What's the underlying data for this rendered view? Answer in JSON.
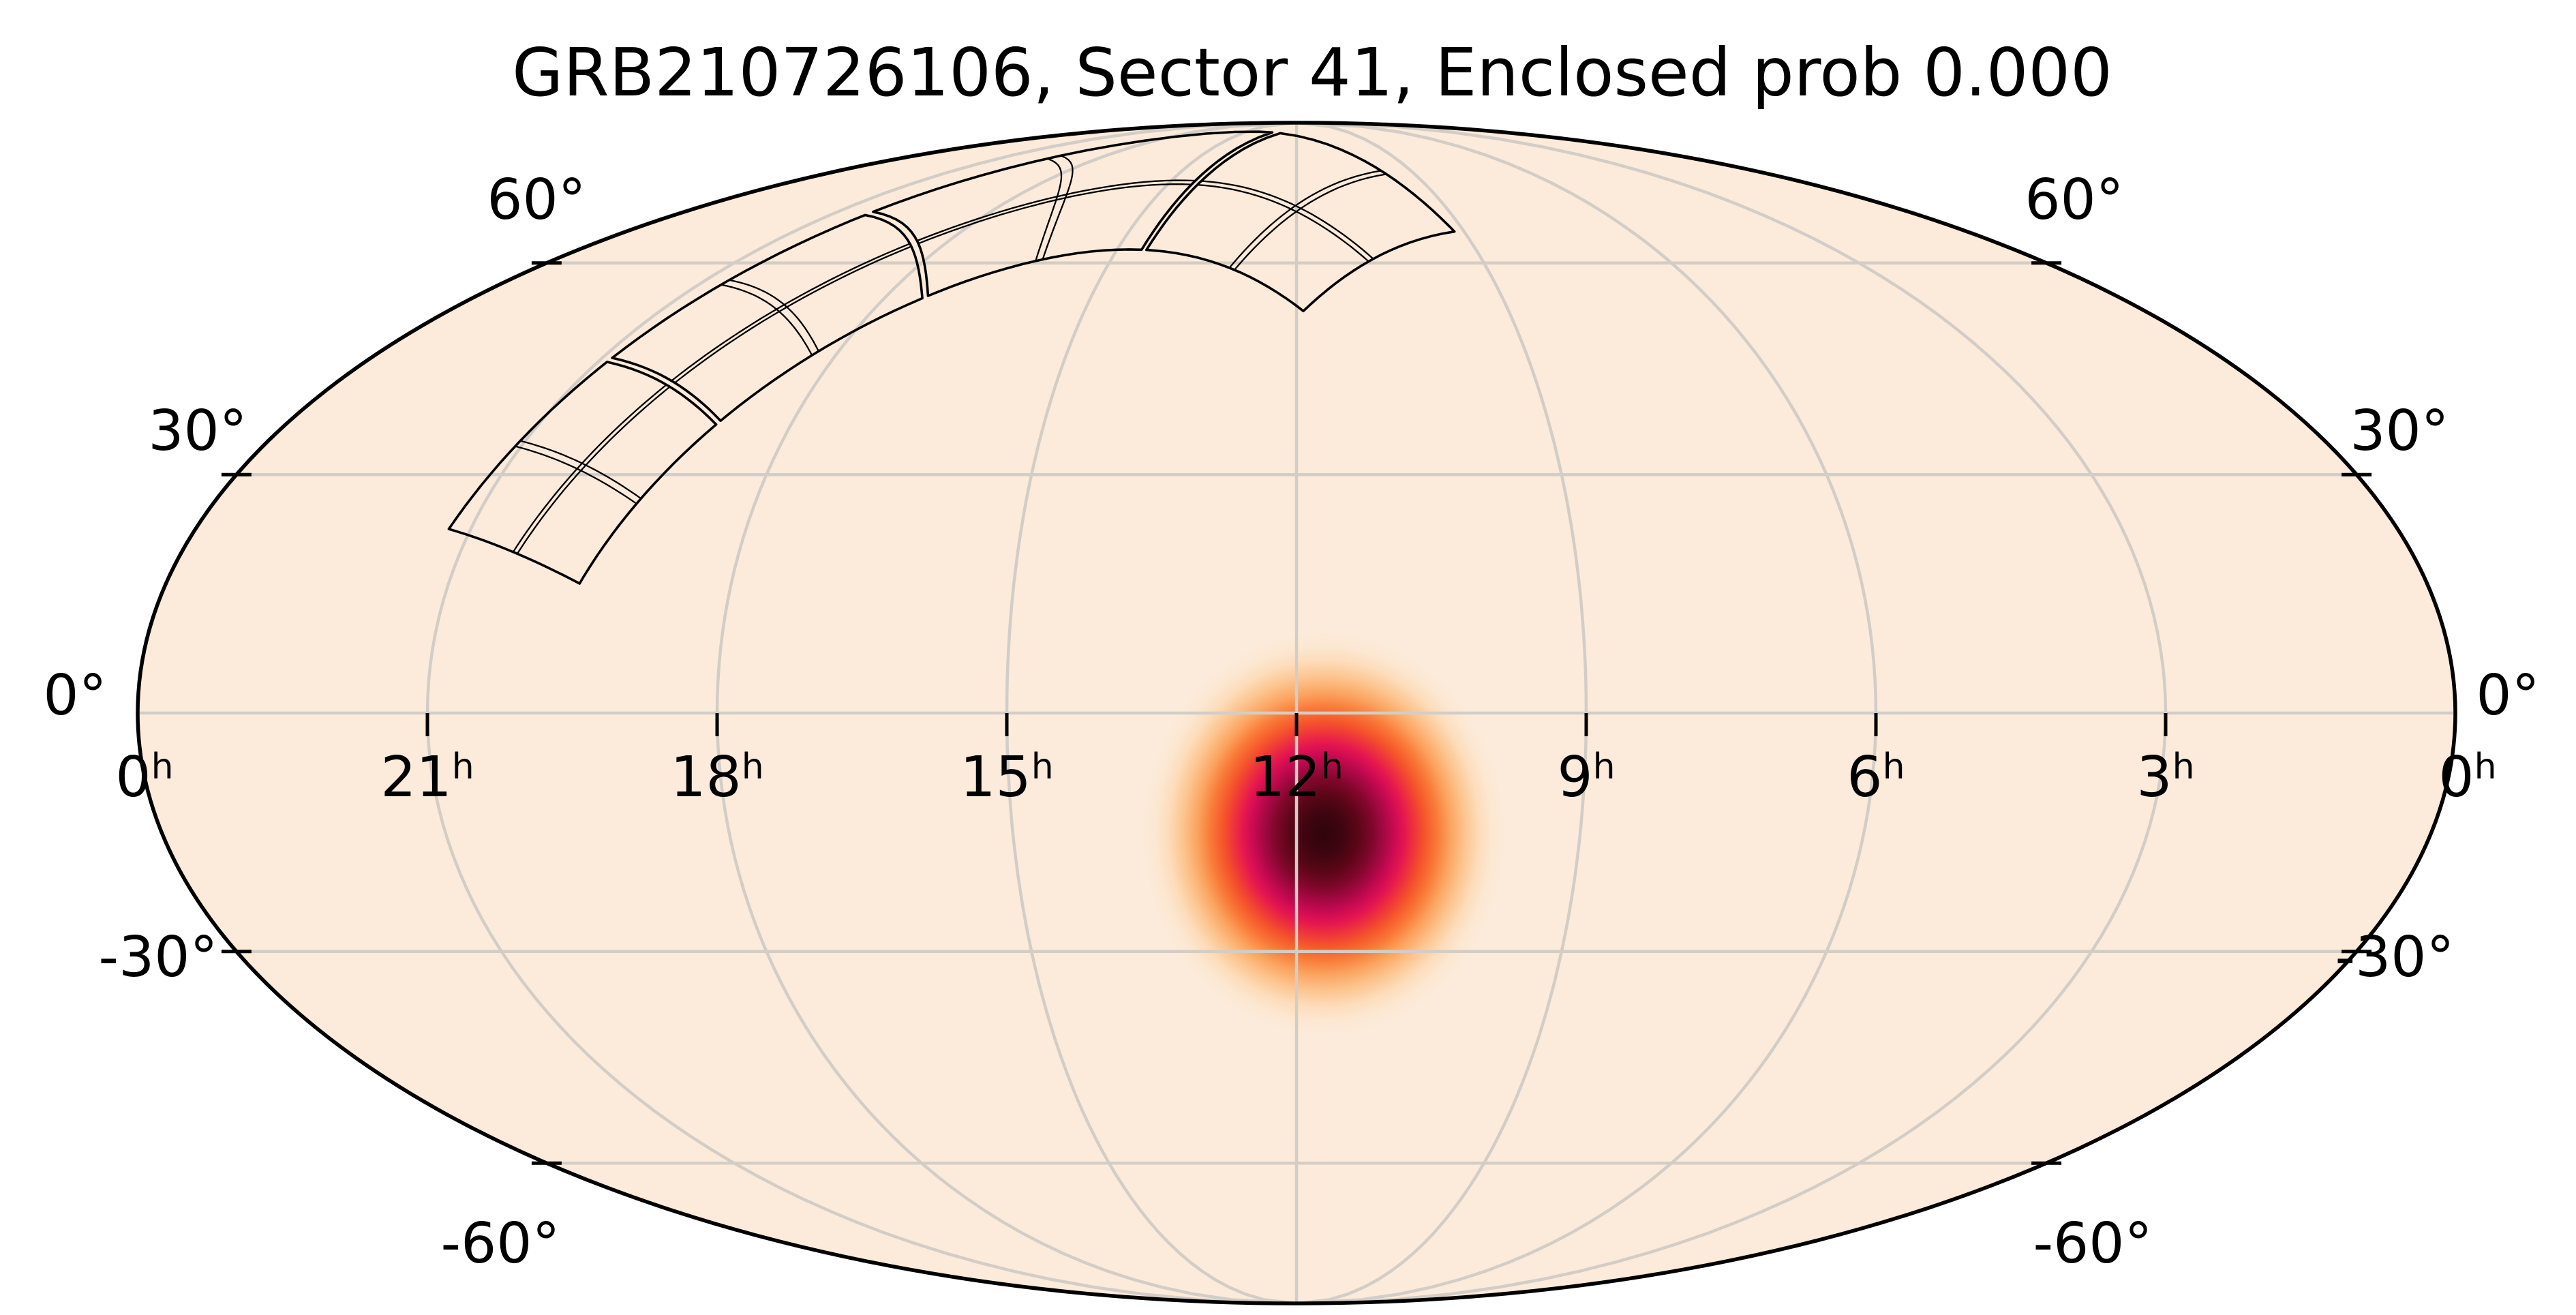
{
  "title": "GRB210726106, Sector 41, Enclosed prob 0.000",
  "chart_data": {
    "type": "skymap",
    "projection": "mollweide",
    "coordinate_frame": "equatorial (right ascension in hours, declination in degrees)",
    "title": "GRB210726106, Sector 41, Enclosed prob 0.000",
    "grb_name": "GRB210726106",
    "sector": 41,
    "enclosed_prob": "0.000",
    "grid_on": true,
    "graticule": {
      "dec_lines_deg": [
        60,
        30,
        0,
        -30,
        -60
      ],
      "ra_lines_hours": [
        21,
        18,
        15,
        12,
        9,
        6,
        3
      ],
      "dec_tick_mark_degs": [
        60,
        30,
        -30,
        -60
      ],
      "ra_axis_range_hours": [
        0,
        24
      ],
      "dec_axis_range_deg": [
        -90,
        90
      ]
    },
    "dec_labels": [
      {
        "text": "60°",
        "dec": 60,
        "left_xy": [
          787,
          293
        ],
        "right_xy": [
          3043,
          293
        ]
      },
      {
        "text": "30°",
        "dec": 30,
        "left_xy": [
          290,
          632
        ],
        "right_xy": [
          3520,
          632
        ]
      },
      {
        "text": "0°",
        "dec": 0,
        "left_xy": [
          110,
          1020
        ],
        "right_xy": [
          3679,
          1020
        ]
      },
      {
        "text": "-30°",
        "dec": -30,
        "left_xy": [
          232,
          1404
        ],
        "right_xy": [
          3513,
          1404
        ]
      },
      {
        "text": "-60°",
        "dec": -60,
        "left_xy": [
          734,
          1824
        ],
        "right_xy": [
          3070,
          1824
        ]
      }
    ],
    "ra_labels": [
      {
        "hours": "0",
        "sup": "h",
        "ra_deg": 357.5
      },
      {
        "hours": "21",
        "sup": "h",
        "ra_deg": 315
      },
      {
        "hours": "18",
        "sup": "h",
        "ra_deg": 270
      },
      {
        "hours": "15",
        "sup": "h",
        "ra_deg": 225
      },
      {
        "hours": "12",
        "sup": "h",
        "ra_deg": 180
      },
      {
        "hours": "9",
        "sup": "h",
        "ra_deg": 135
      },
      {
        "hours": "6",
        "sup": "h",
        "ra_deg": 90
      },
      {
        "hours": "3",
        "sup": "h",
        "ra_deg": 45
      },
      {
        "hours": "0",
        "sup": "h",
        "ra_deg": 2.5
      }
    ],
    "probability_blob": {
      "description": "GRB localization probability density (darkest = highest probability)",
      "center_ra_hours": 11.71,
      "center_ra_deg": 175.7,
      "center_dec_deg": -15.0,
      "core_radius_deg": 5,
      "halo_radius_deg": 28,
      "gradient_stops": [
        [
          0.0,
          "#30040b"
        ],
        [
          0.1,
          "#3d050f"
        ],
        [
          0.19,
          "#5a0617"
        ],
        [
          0.27,
          "#7f072b"
        ],
        [
          0.33,
          "#a30842"
        ],
        [
          0.39,
          "#c90a52"
        ],
        [
          0.445,
          "#e41551"
        ],
        [
          0.5,
          "#ee333c"
        ],
        [
          0.56,
          "#f5562b"
        ],
        [
          0.63,
          "#f97b39"
        ],
        [
          0.7,
          "#fba35f"
        ],
        [
          0.78,
          "#fcc48e"
        ],
        [
          0.86,
          "#fddcba"
        ],
        [
          0.93,
          "#fce7d1"
        ],
        [
          1.0,
          "#fcebda"
        ]
      ]
    },
    "tess_footprint": {
      "description": "TESS Sector 41 four-camera footprint outline with CCD dividers",
      "sector": 41,
      "n_cameras": 4,
      "camera_fov_deg": 24,
      "camera_half_size_along_band_deg": 11.7,
      "camera_half_width_deg": 12,
      "ccd_divider_offset_deg": 0.38,
      "camera_band_positions_deg": [
        12,
        36,
        60,
        84
      ],
      "camera_centers_radec_deg": [
        [
          302.2,
          31.0
        ],
        [
          289.8,
          53.1
        ],
        [
          254.1,
          71.4
        ],
        [
          180.2,
          69.2
        ]
      ]
    },
    "colors": {
      "figure_background": "#ffffff",
      "sky_background": "#fcebda",
      "gridline": "#d3cdc7",
      "map_outline": "#000000",
      "footprint_outline": "#000000",
      "tick": "#000000",
      "label_text": "#000000"
    }
  }
}
